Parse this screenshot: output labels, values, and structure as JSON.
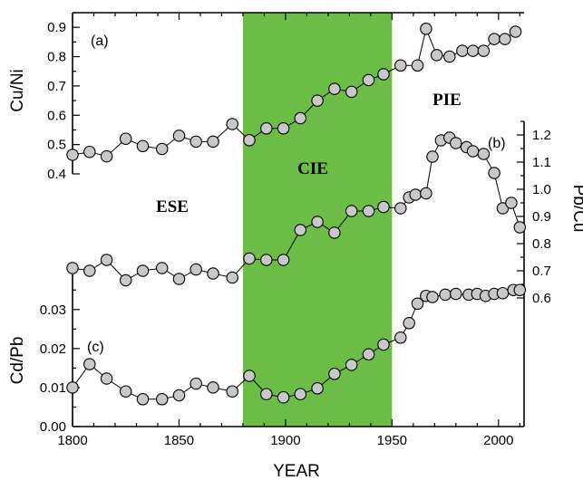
{
  "colors": {
    "cie_band": "#6cbd45",
    "marker_fill": "#c8c8c8",
    "line": "#000000"
  },
  "chart_data": {
    "type": "line",
    "xlabel": "YEAR",
    "xlim": [
      1800,
      2012
    ],
    "x_ticks": [
      1800,
      1850,
      1900,
      1950,
      2000
    ],
    "shaded_period": {
      "label": "CIE",
      "x": [
        1880,
        1950
      ]
    },
    "era_labels": [
      "ESE",
      "CIE",
      "PIE"
    ],
    "series": [
      {
        "panel": "(a)",
        "ylabel": "Cu/Ni",
        "axis": "left",
        "ylim": [
          0.4,
          0.95
        ],
        "y_ticks": [
          0.4,
          0.5,
          0.6,
          0.7,
          0.8,
          0.9
        ],
        "x": [
          1800,
          1808,
          1816,
          1825,
          1833,
          1842,
          1850,
          1858,
          1866,
          1875,
          1883,
          1891,
          1899,
          1907,
          1915,
          1923,
          1931,
          1939,
          1946,
          1954,
          1962,
          1966,
          1971,
          1977,
          1983,
          1988,
          1993,
          1998,
          2003,
          2008
        ],
        "values": [
          0.465,
          0.475,
          0.46,
          0.52,
          0.495,
          0.485,
          0.53,
          0.51,
          0.51,
          0.57,
          0.515,
          0.555,
          0.555,
          0.59,
          0.65,
          0.69,
          0.68,
          0.72,
          0.74,
          0.77,
          0.77,
          0.895,
          0.805,
          0.8,
          0.82,
          0.82,
          0.82,
          0.86,
          0.86,
          0.885
        ]
      },
      {
        "panel": "(b)",
        "ylabel": "Pb/Cu",
        "axis": "right",
        "ylim": [
          0.57,
          1.25
        ],
        "y_ticks": [
          0.6,
          0.7,
          0.8,
          0.9,
          1.0,
          1.1,
          1.2
        ],
        "x": [
          1800,
          1808,
          1816,
          1825,
          1833,
          1842,
          1850,
          1858,
          1866,
          1875,
          1883,
          1891,
          1899,
          1907,
          1915,
          1923,
          1931,
          1939,
          1946,
          1954,
          1958,
          1961,
          1966,
          1969,
          1973,
          1977,
          1980,
          1985,
          1988,
          1993,
          1998,
          2002,
          2006,
          2010
        ],
        "values": [
          0.71,
          0.7,
          0.74,
          0.665,
          0.7,
          0.71,
          0.67,
          0.705,
          0.69,
          0.675,
          0.745,
          0.74,
          0.74,
          0.85,
          0.88,
          0.84,
          0.92,
          0.92,
          0.935,
          0.93,
          0.97,
          0.98,
          0.985,
          1.12,
          1.18,
          1.19,
          1.17,
          1.155,
          1.14,
          1.13,
          1.06,
          0.93,
          0.95,
          0.86
        ]
      },
      {
        "panel": "(c)",
        "ylabel": "Cd/Pb",
        "axis": "left",
        "ylim": [
          0,
          0.039
        ],
        "y_ticks": [
          0.0,
          0.01,
          0.02,
          0.03
        ],
        "x": [
          1800,
          1808,
          1816,
          1825,
          1833,
          1842,
          1850,
          1858,
          1866,
          1875,
          1883,
          1891,
          1899,
          1907,
          1915,
          1923,
          1931,
          1939,
          1946,
          1954,
          1958,
          1962,
          1966,
          1969,
          1975,
          1980,
          1986,
          1990,
          1994,
          1998,
          2002,
          2007,
          2010
        ],
        "values": [
          0.01,
          0.016,
          0.0123,
          0.009,
          0.007,
          0.007,
          0.008,
          0.011,
          0.01,
          0.009,
          0.013,
          0.0083,
          0.0075,
          0.0083,
          0.0098,
          0.0135,
          0.0158,
          0.0185,
          0.021,
          0.0228,
          0.0265,
          0.0315,
          0.0335,
          0.0332,
          0.0338,
          0.034,
          0.0338,
          0.034,
          0.0335,
          0.034,
          0.0342,
          0.035,
          0.035
        ]
      }
    ]
  }
}
